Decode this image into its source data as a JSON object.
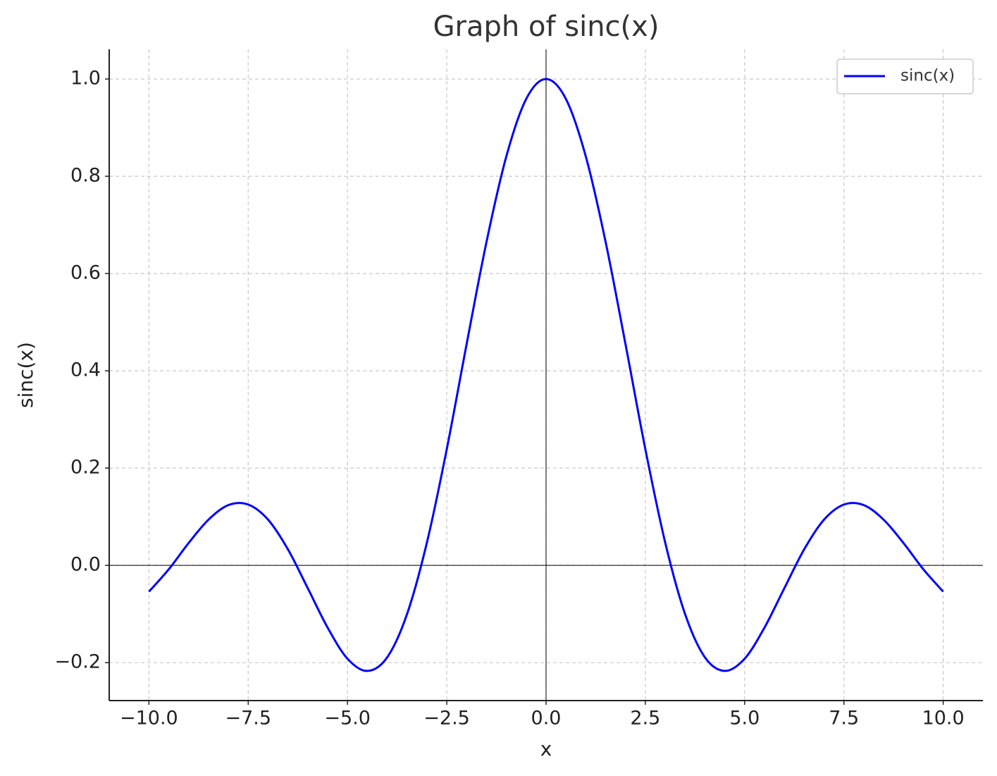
{
  "chart_data": {
    "type": "line",
    "title": "Graph of sinc(x)",
    "x_label": "x",
    "y_label": "sinc(x)",
    "x": [
      -10,
      -9.5,
      -9,
      -8.5,
      -8,
      -7.5,
      -7,
      -6.5,
      -6,
      -5.5,
      -5,
      -4.5,
      -4,
      -3.5,
      -3,
      -2.5,
      -2,
      -1.5,
      -1,
      -0.5,
      0,
      0.5,
      1,
      1.5,
      2,
      2.5,
      3,
      3.5,
      4,
      4.5,
      5,
      5.5,
      6,
      6.5,
      7,
      7.5,
      8,
      8.5,
      9,
      9.5,
      10
    ],
    "series": [
      {
        "name": "sinc(x)",
        "color": "#0000ff",
        "values": [
          -0.054,
          -0.008,
          0.046,
          0.094,
          0.124,
          0.125,
          0.094,
          0.033,
          -0.047,
          -0.128,
          -0.192,
          -0.217,
          -0.189,
          -0.1,
          0.047,
          0.239,
          0.455,
          0.665,
          0.841,
          0.959,
          1.0,
          0.959,
          0.841,
          0.665,
          0.455,
          0.239,
          0.047,
          -0.1,
          -0.189,
          -0.217,
          -0.192,
          -0.128,
          -0.047,
          0.033,
          0.094,
          0.125,
          0.124,
          0.094,
          0.046,
          -0.008,
          -0.054
        ]
      }
    ],
    "xlim": [
      -11,
      11
    ],
    "xticks": [
      {
        "value": -10,
        "label": "−10.0"
      },
      {
        "value": -7.5,
        "label": "−7.5"
      },
      {
        "value": -5,
        "label": "−5.0"
      },
      {
        "value": -2.5,
        "label": "−2.5"
      },
      {
        "value": 0,
        "label": "0.0"
      },
      2.5,
      {
        "value": 5,
        "label": "5.0"
      },
      7.5,
      {
        "value": 10,
        "label": "10.0"
      }
    ],
    "ylim": [
      -0.278,
      1.061
    ],
    "yticks": [
      {
        "value": -0.2,
        "label": "−0.2"
      },
      {
        "value": 0,
        "label": "0.0"
      },
      0.2,
      0.4,
      0.6,
      0.8,
      {
        "value": 1,
        "label": "1.0"
      }
    ],
    "grid": true,
    "legend": "upper right"
  }
}
